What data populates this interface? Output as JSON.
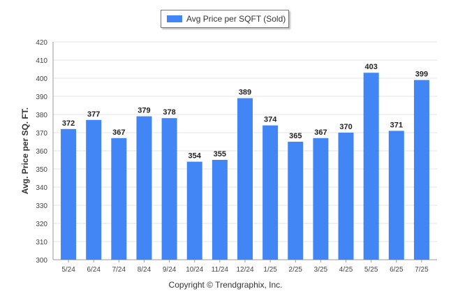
{
  "chart_data": {
    "type": "bar",
    "title": "",
    "xlabel": "",
    "ylabel": "Avg. Price per SQ. FT.",
    "ylim": [
      300,
      420
    ],
    "yticks": [
      300,
      310,
      320,
      330,
      340,
      350,
      360,
      370,
      380,
      390,
      400,
      410,
      420
    ],
    "grid": true,
    "legend_position": "top-center",
    "categories": [
      "5/24",
      "6/24",
      "7/24",
      "8/24",
      "9/24",
      "10/24",
      "11/24",
      "12/24",
      "1/25",
      "2/25",
      "3/25",
      "4/25",
      "5/25",
      "6/25",
      "7/25"
    ],
    "series": [
      {
        "name": "Avg Price per SQFT (Sold)",
        "color": "#4285f4",
        "values": [
          372,
          377,
          367,
          379,
          378,
          354,
          355,
          389,
          374,
          365,
          367,
          370,
          403,
          371,
          399
        ]
      }
    ]
  },
  "footer": {
    "copyright": "Copyright © Trendgraphix, Inc."
  }
}
